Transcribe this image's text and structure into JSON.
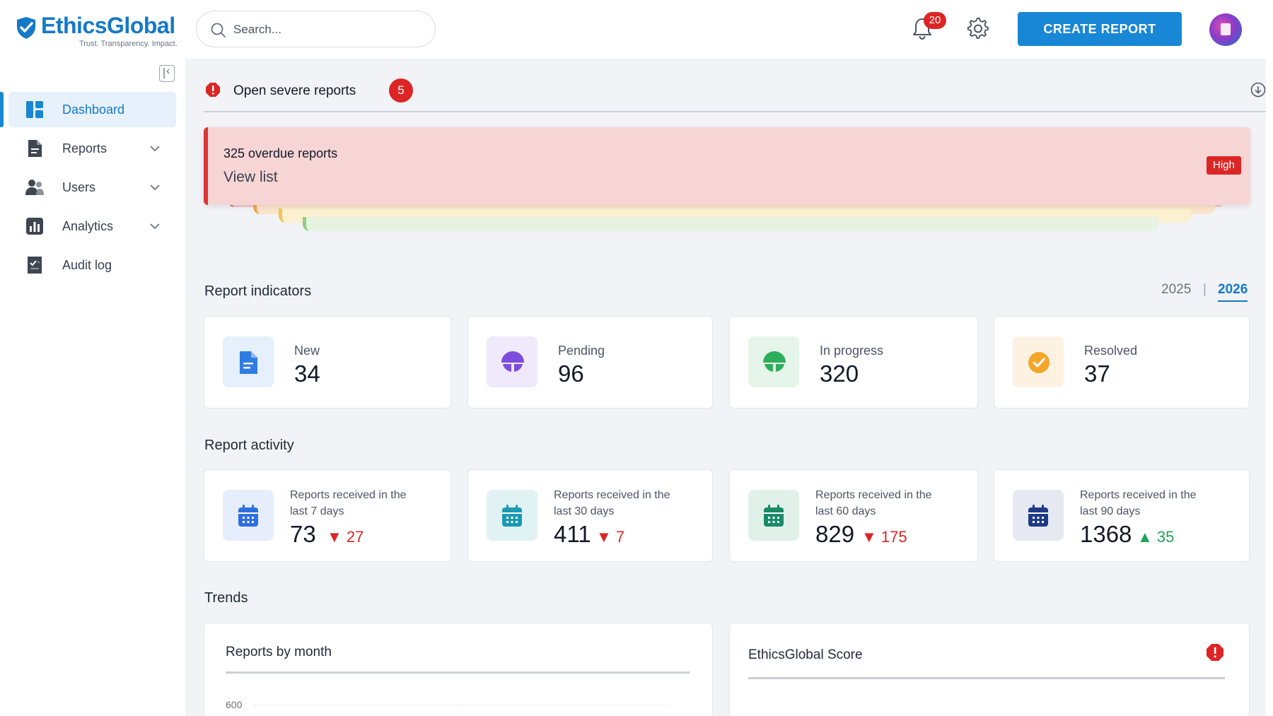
{
  "brand": {
    "name": "EthicsGlobal",
    "tagline": "Trust. Transparency. Impact."
  },
  "search": {
    "placeholder": "Search..."
  },
  "header": {
    "notifications_count": "20",
    "create_report_label": "CREATE REPORT"
  },
  "sidebar": {
    "items": [
      {
        "label": "Dashboard",
        "icon": "dashboard-icon",
        "active": true
      },
      {
        "label": "Reports",
        "icon": "document-icon",
        "expandable": true
      },
      {
        "label": "Users",
        "icon": "users-icon",
        "expandable": true
      },
      {
        "label": "Analytics",
        "icon": "analytics-icon",
        "expandable": true
      },
      {
        "label": "Audit log",
        "icon": "audit-log-icon"
      }
    ]
  },
  "severe": {
    "title": "Open severe reports",
    "count": "5",
    "alert": {
      "title": "325 overdue reports",
      "link": "View list",
      "severity": "High"
    }
  },
  "indicators": {
    "title": "Report indicators",
    "years": [
      "2025",
      "2026"
    ],
    "selected_year": "2026",
    "cards": [
      {
        "label": "New",
        "value": "34",
        "icon": "document-icon",
        "color": "#2f7de1",
        "bg": "#e6effc"
      },
      {
        "label": "Pending",
        "value": "96",
        "icon": "pending-icon",
        "color": "#7c4ddb",
        "bg": "#efe9fb"
      },
      {
        "label": "In progress",
        "value": "320",
        "icon": "in-progress-icon",
        "color": "#2eae5b",
        "bg": "#e5f5ea"
      },
      {
        "label": "Resolved",
        "value": "37",
        "icon": "check-icon",
        "color": "#f4a62a",
        "bg": "#fdf2e2"
      }
    ]
  },
  "activity": {
    "title": "Report activity",
    "cards": [
      {
        "label": "Reports received in the last 7 days",
        "value": "73",
        "delta": "27",
        "direction": "down",
        "icon": "calendar-icon",
        "color": "#2f6fe0",
        "bg": "#e6edfc"
      },
      {
        "label": "Reports received in the last 30 days",
        "value": "411",
        "delta": "7",
        "direction": "down",
        "icon": "calendar-icon",
        "color": "#1a9bb3",
        "bg": "#e1f2f5"
      },
      {
        "label": "Reports received in the last 60 days",
        "value": "829",
        "delta": "175",
        "direction": "down",
        "icon": "calendar-icon",
        "color": "#178a66",
        "bg": "#e1f1ea"
      },
      {
        "label": "Reports received in the last 90 days",
        "value": "1368",
        "delta": "35",
        "direction": "up",
        "icon": "calendar-icon",
        "color": "#1d3a8a",
        "bg": "#e6e8f2"
      }
    ]
  },
  "trends": {
    "title": "Trends",
    "reports_by_month": {
      "title": "Reports by month",
      "y_tick_top": "600"
    },
    "score": {
      "title": "EthicsGlobal Score"
    }
  },
  "colors": {
    "accent": "#1887d6",
    "danger": "#dc2626",
    "success": "#22a35a"
  }
}
